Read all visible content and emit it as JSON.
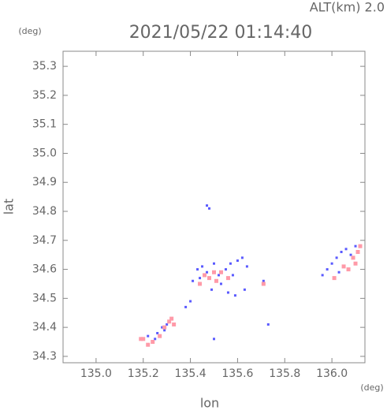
{
  "chart_data": {
    "type": "scatter",
    "title": "2021/05/22 01:14:40",
    "subtitle": "ALT(km) 2.0",
    "x_label": "lon",
    "y_label": "lat",
    "x_unit": "(deg)",
    "y_unit": "(deg)",
    "xlim": [
      134.86,
      136.14
    ],
    "ylim": [
      34.278,
      35.352
    ],
    "xticks": [
      {
        "value": 135.0,
        "label": "135.0"
      },
      135.2,
      135.4,
      135.6,
      135.8,
      {
        "value": 136.0,
        "label": "136.0"
      }
    ],
    "yticks": [
      34.3,
      34.4,
      34.5,
      34.6,
      34.7,
      34.8,
      34.9,
      {
        "value": 35.0,
        "label": "35.0"
      },
      35.1,
      35.2,
      35.3
    ],
    "series": [
      {
        "color": "#5a5aff",
        "x": [
          135.26,
          135.28,
          135.3,
          135.25,
          135.22,
          135.29,
          135.47,
          135.48,
          135.43,
          135.45,
          135.47,
          135.5,
          135.52,
          135.55,
          135.57,
          135.6,
          135.62,
          135.58,
          135.53,
          135.44,
          135.41,
          135.49,
          135.56,
          135.59,
          135.63,
          135.64,
          135.4,
          135.38,
          135.5,
          135.73,
          135.71,
          135.96,
          135.98,
          136.0,
          136.02,
          136.04,
          136.06,
          136.08,
          136.03,
          136.1
        ],
        "y": [
          34.38,
          34.4,
          34.41,
          34.36,
          34.37,
          34.39,
          34.82,
          34.81,
          34.6,
          34.61,
          34.59,
          34.62,
          34.58,
          34.6,
          34.62,
          34.63,
          34.64,
          34.58,
          34.55,
          34.57,
          34.56,
          34.53,
          34.52,
          34.51,
          34.53,
          34.61,
          34.49,
          34.47,
          34.36,
          34.41,
          34.56,
          34.58,
          34.6,
          34.62,
          34.64,
          34.66,
          34.67,
          34.65,
          34.59,
          34.68
        ]
      },
      {
        "color": "#ff9aa8",
        "x": [
          135.2,
          135.22,
          135.24,
          135.27,
          135.31,
          135.32,
          135.33,
          135.29,
          135.19,
          135.46,
          135.48,
          135.51,
          135.53,
          135.56,
          135.44,
          135.71,
          136.01,
          136.05,
          136.09,
          136.11,
          136.12,
          136.1,
          136.07,
          135.5
        ],
        "y": [
          34.36,
          34.34,
          34.35,
          34.37,
          34.42,
          34.43,
          34.41,
          34.4,
          34.36,
          34.58,
          34.57,
          34.56,
          34.59,
          34.57,
          34.55,
          34.55,
          34.57,
          34.61,
          34.64,
          34.66,
          34.68,
          34.62,
          34.6,
          34.59
        ]
      }
    ]
  }
}
